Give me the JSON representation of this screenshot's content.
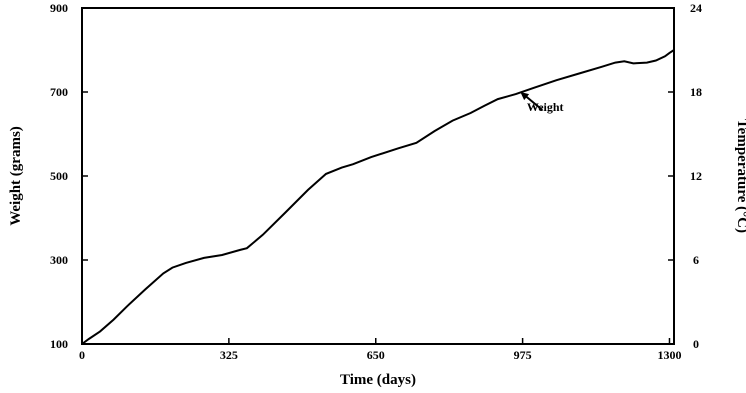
{
  "chart_data": {
    "type": "line",
    "title": "",
    "xlabel": "Time (days)",
    "ylabel": "Weight (grams)",
    "y2label": "Temperature (°C)",
    "xlim": [
      0,
      1310
    ],
    "ylim": [
      100,
      900
    ],
    "y2lim": [
      0,
      24
    ],
    "xticks": [
      0,
      325,
      650,
      975,
      1300
    ],
    "yticks": [
      100,
      300,
      500,
      700,
      900
    ],
    "y2ticks": [
      0,
      6,
      12,
      18,
      24
    ],
    "grid": false,
    "series": [
      {
        "name": "Weight",
        "axis": "left",
        "color": "#000000",
        "x": [
          0,
          15,
          40,
          70,
          100,
          140,
          180,
          200,
          230,
          270,
          310,
          350,
          365,
          400,
          450,
          500,
          540,
          575,
          600,
          640,
          700,
          740,
          780,
          820,
          860,
          890,
          920,
          960,
          1000,
          1050,
          1100,
          1150,
          1180,
          1200,
          1220,
          1250,
          1270,
          1290,
          1300,
          1310
        ],
        "values": [
          100,
          112,
          130,
          158,
          190,
          230,
          268,
          282,
          293,
          305,
          312,
          324,
          328,
          360,
          413,
          467,
          505,
          520,
          528,
          545,
          566,
          579,
          607,
          632,
          650,
          667,
          683,
          695,
          710,
          728,
          744,
          760,
          770,
          773,
          768,
          770,
          775,
          785,
          793,
          800
        ]
      }
    ],
    "annotations": [
      {
        "text": "Weight",
        "x": 1025,
        "y": 650,
        "arrow_to_x": 970,
        "arrow_to_y": 700
      }
    ]
  }
}
